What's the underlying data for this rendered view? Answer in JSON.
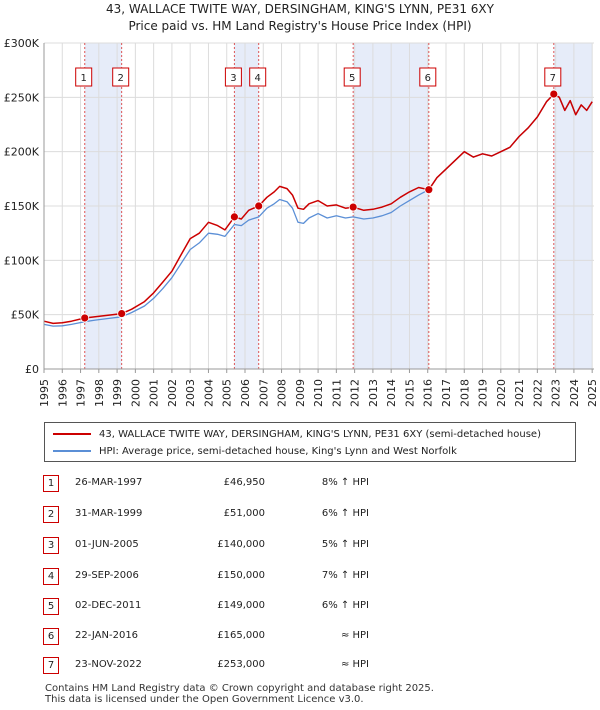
{
  "title_line1": "43, WALLACE TWITE WAY, DERSINGHAM, KING'S LYNN, PE31 6XY",
  "title_line2": "Price paid vs. HM Land Registry's House Price Index (HPI)",
  "chart_data": {
    "type": "line",
    "xlim": [
      1995,
      2025.1
    ],
    "ylim": [
      0,
      300000
    ],
    "y_ticks": [
      0,
      50000,
      100000,
      150000,
      200000,
      250000,
      300000
    ],
    "y_tick_labels": [
      "£0",
      "£50K",
      "£100K",
      "£150K",
      "£200K",
      "£250K",
      "£300K"
    ],
    "x_ticks": [
      1995,
      1996,
      1997,
      1998,
      1999,
      2000,
      2001,
      2002,
      2003,
      2004,
      2005,
      2006,
      2007,
      2008,
      2009,
      2010,
      2011,
      2012,
      2013,
      2014,
      2015,
      2016,
      2017,
      2018,
      2019,
      2020,
      2021,
      2022,
      2023,
      2024,
      2025
    ],
    "x_tick_labels": [
      "1995",
      "1996",
      "1997",
      "1998",
      "1999",
      "2000",
      "2001",
      "2002",
      "2003",
      "2004",
      "2005",
      "2006",
      "2007",
      "2008",
      "2009",
      "2010",
      "2011",
      "2012",
      "2013",
      "2014",
      "2015",
      "2016",
      "2017",
      "2018",
      "2019",
      "2020",
      "2021",
      "2022",
      "2023",
      "2024",
      "2025"
    ],
    "shaded_ranges": [
      [
        1997.23,
        1999.25
      ],
      [
        2005.42,
        2006.75
      ],
      [
        2011.92,
        2016.06
      ],
      [
        2022.9,
        2025.0
      ]
    ],
    "series": [
      {
        "name": "43, WALLACE TWITE WAY, DERSINGHAM, KING'S LYNN, PE31 6XY (semi-detached house)",
        "color": "#cc0000",
        "x": [
          1995,
          1995.5,
          1996,
          1996.5,
          1997.23,
          1997.8,
          1998.5,
          1999.25,
          1999.8,
          2000.5,
          2001,
          2001.5,
          2002,
          2002.5,
          2003,
          2003.5,
          2004,
          2004.5,
          2004.9,
          2005.42,
          2005.8,
          2006.2,
          2006.75,
          2007.2,
          2007.6,
          2007.9,
          2008.3,
          2008.6,
          2008.9,
          2009.2,
          2009.5,
          2010,
          2010.5,
          2011,
          2011.5,
          2011.92,
          2012.5,
          2013,
          2013.5,
          2014,
          2014.5,
          2015,
          2015.5,
          2016.06,
          2016.5,
          2017,
          2017.5,
          2018,
          2018.5,
          2019,
          2019.5,
          2020,
          2020.5,
          2021,
          2021.5,
          2022,
          2022.5,
          2022.9,
          2023.2,
          2023.5,
          2023.8,
          2024.1,
          2024.4,
          2024.7,
          2025
        ],
        "values": [
          44000,
          42000,
          42500,
          44000,
          46950,
          48000,
          49500,
          51000,
          55000,
          62000,
          70000,
          80000,
          90000,
          105000,
          120000,
          125000,
          135000,
          132000,
          128000,
          140000,
          138000,
          146000,
          150000,
          158000,
          163000,
          168000,
          166000,
          160000,
          148000,
          147000,
          152000,
          155000,
          150000,
          151000,
          148000,
          149000,
          146000,
          147000,
          149000,
          152000,
          158000,
          163000,
          167000,
          165000,
          176000,
          184000,
          192000,
          200000,
          195000,
          198000,
          196000,
          200000,
          204000,
          214000,
          222000,
          232000,
          246000,
          253000,
          250000,
          238000,
          247000,
          234000,
          243000,
          238000,
          246000
        ]
      },
      {
        "name": "HPI: Average price, semi-detached house, King's Lynn and West Norfolk",
        "color": "#5b8fd6",
        "x": [
          1995,
          1995.5,
          1996,
          1996.5,
          1997.23,
          1997.8,
          1998.5,
          1999.25,
          1999.8,
          2000.5,
          2001,
          2001.5,
          2002,
          2002.5,
          2003,
          2003.5,
          2004,
          2004.5,
          2004.9,
          2005.42,
          2005.8,
          2006.2,
          2006.75,
          2007.2,
          2007.6,
          2007.9,
          2008.3,
          2008.6,
          2008.9,
          2009.2,
          2009.5,
          2010,
          2010.5,
          2011,
          2011.5,
          2011.92,
          2012.5,
          2013,
          2013.5,
          2014,
          2014.5,
          2015,
          2015.5,
          2016.06,
          2016.5,
          2017,
          2017.5,
          2018,
          2018.5,
          2019,
          2019.5,
          2020,
          2020.5,
          2021,
          2021.5,
          2022,
          2022.5,
          2022.9,
          2023.2,
          2023.5,
          2023.8,
          2024.1,
          2024.4,
          2024.7,
          2025
        ],
        "values": [
          41000,
          39500,
          39800,
          41000,
          43500,
          45000,
          46500,
          48000,
          52000,
          58000,
          65000,
          74000,
          84000,
          97000,
          110000,
          116000,
          125000,
          124000,
          122000,
          133000,
          132000,
          137000,
          140000,
          148000,
          152000,
          156000,
          154000,
          148000,
          135000,
          134000,
          139000,
          143000,
          139000,
          141000,
          139000,
          140000,
          138000,
          139000,
          141000,
          144000,
          150000,
          155000,
          160000,
          165000,
          176000,
          184000,
          192000,
          200000,
          195000,
          198000,
          196000,
          200000,
          204000,
          214000,
          222000,
          232000,
          246000,
          253000,
          250000,
          238000,
          247000,
          234000,
          243000,
          238000,
          246000
        ]
      }
    ],
    "sales": [
      {
        "id": "1",
        "x": 1997.23,
        "value": 46950
      },
      {
        "id": "2",
        "x": 1999.25,
        "value": 51000
      },
      {
        "id": "3",
        "x": 2005.42,
        "value": 140000
      },
      {
        "id": "4",
        "x": 2006.75,
        "value": 150000
      },
      {
        "id": "5",
        "x": 2011.92,
        "value": 149000
      },
      {
        "id": "6",
        "x": 2016.06,
        "value": 165000
      },
      {
        "id": "7",
        "x": 2022.9,
        "value": 253000
      }
    ]
  },
  "legend": {
    "red_label": "43, WALLACE TWITE WAY, DERSINGHAM, KING'S LYNN, PE31 6XY (semi-detached house)",
    "blue_label": "HPI: Average price, semi-detached house, King's Lynn and West Norfolk"
  },
  "transactions": [
    {
      "num": "1",
      "date": "26-MAR-1997",
      "price": "£46,950",
      "hpi": "8% ↑ HPI"
    },
    {
      "num": "2",
      "date": "31-MAR-1999",
      "price": "£51,000",
      "hpi": "6% ↑ HPI"
    },
    {
      "num": "3",
      "date": "01-JUN-2005",
      "price": "£140,000",
      "hpi": "5% ↑ HPI"
    },
    {
      "num": "4",
      "date": "29-SEP-2006",
      "price": "£150,000",
      "hpi": "7% ↑ HPI"
    },
    {
      "num": "5",
      "date": "02-DEC-2011",
      "price": "£149,000",
      "hpi": "6% ↑ HPI"
    },
    {
      "num": "6",
      "date": "22-JAN-2016",
      "price": "£165,000",
      "hpi": "≈ HPI"
    },
    {
      "num": "7",
      "date": "23-NOV-2022",
      "price": "£253,000",
      "hpi": "≈ HPI"
    }
  ],
  "footer": {
    "line1": "Contains HM Land Registry data © Crown copyright and database right 2025.",
    "line2": "This data is licensed under the Open Government Licence v3.0."
  }
}
